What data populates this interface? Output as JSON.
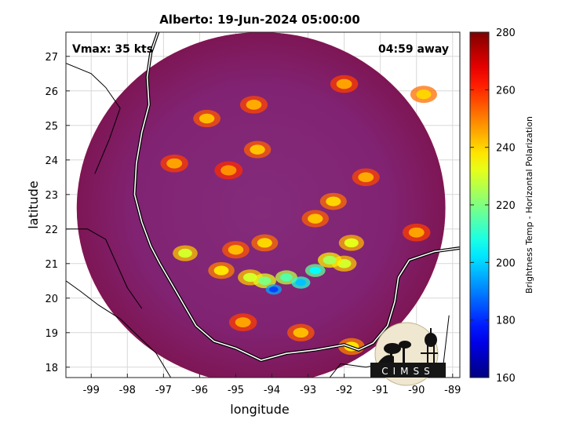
{
  "chart_data": {
    "type": "heatmap",
    "title": "Alberto: 19-Jun-2024 05:00:00",
    "xlabel": "longitude",
    "ylabel": "latitude",
    "xlim": [
      -99.7,
      -88.8
    ],
    "ylim": [
      17.7,
      27.7
    ],
    "xticks": [
      -99,
      -98,
      -97,
      -96,
      -95,
      -94,
      -93,
      -92,
      -91,
      -90,
      -89
    ],
    "yticks": [
      18,
      19,
      20,
      21,
      22,
      23,
      24,
      25,
      26,
      27
    ],
    "grid": true,
    "annotations": {
      "vmax": "Vmax: 35 kts",
      "eta": "04:59 away"
    },
    "colorbar": {
      "label": "Brightness Temp - Horizontal Polarization",
      "range": [
        160,
        280
      ],
      "ticks": [
        160,
        180,
        200,
        220,
        240,
        260,
        280
      ],
      "colormap": "jet"
    },
    "swath": {
      "center_lon": -94.3,
      "center_lat": 22.6,
      "radius_deg": 5.1
    },
    "background_level": 265,
    "features": [
      {
        "lon": -93.95,
        "lat": 20.25,
        "value": 183
      },
      {
        "lon": -93.2,
        "lat": 20.45,
        "value": 198
      },
      {
        "lon": -92.8,
        "lat": 20.8,
        "value": 205
      },
      {
        "lon": -93.6,
        "lat": 20.6,
        "value": 215
      },
      {
        "lon": -94.2,
        "lat": 20.5,
        "value": 220
      },
      {
        "lon": -92.4,
        "lat": 21.1,
        "value": 225
      },
      {
        "lon": -91.8,
        "lat": 21.6,
        "value": 232
      },
      {
        "lon": -92.0,
        "lat": 21.0,
        "value": 230
      },
      {
        "lon": -94.6,
        "lat": 20.6,
        "value": 230
      },
      {
        "lon": -95.4,
        "lat": 20.8,
        "value": 238
      },
      {
        "lon": -92.8,
        "lat": 22.3,
        "value": 242
      },
      {
        "lon": -94.2,
        "lat": 21.6,
        "value": 240
      },
      {
        "lon": -95.0,
        "lat": 21.4,
        "value": 243
      },
      {
        "lon": -96.4,
        "lat": 21.3,
        "value": 230
      },
      {
        "lon": -92.3,
        "lat": 22.8,
        "value": 240
      },
      {
        "lon": -91.4,
        "lat": 23.5,
        "value": 245
      },
      {
        "lon": -90.0,
        "lat": 21.9,
        "value": 246
      },
      {
        "lon": -89.8,
        "lat": 25.9,
        "value": 240
      },
      {
        "lon": -94.4,
        "lat": 24.3,
        "value": 242
      },
      {
        "lon": -95.8,
        "lat": 25.2,
        "value": 243
      },
      {
        "lon": -94.5,
        "lat": 25.6,
        "value": 245
      },
      {
        "lon": -93.2,
        "lat": 19.0,
        "value": 243
      },
      {
        "lon": -94.8,
        "lat": 19.3,
        "value": 246
      },
      {
        "lon": -91.8,
        "lat": 18.6,
        "value": 238
      },
      {
        "lon": -95.2,
        "lat": 23.7,
        "value": 248
      },
      {
        "lon": -92.0,
        "lat": 26.2,
        "value": 246
      },
      {
        "lon": -96.7,
        "lat": 23.9,
        "value": 246
      }
    ]
  },
  "logo": {
    "text": "CIMSS"
  }
}
